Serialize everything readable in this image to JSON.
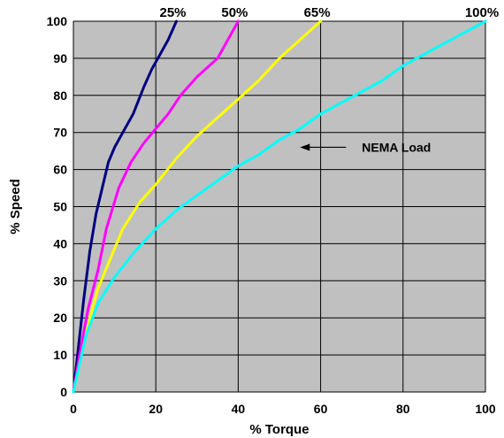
{
  "chart_data": {
    "type": "line",
    "xlabel": "% Torque",
    "ylabel": "% Speed",
    "xlim": [
      0,
      100
    ],
    "ylim": [
      0,
      100
    ],
    "x_ticks": [
      "0",
      "20",
      "40",
      "60",
      "80",
      "100"
    ],
    "y_ticks": [
      "0",
      "10",
      "20",
      "30",
      "40",
      "50",
      "60",
      "70",
      "80",
      "90",
      "100"
    ],
    "grid": true,
    "plot_background": "#c0c0c0",
    "legend": "none",
    "series": [
      {
        "name": "25%",
        "color": "#000080",
        "points": [
          [
            0,
            0
          ],
          [
            1,
            10
          ],
          [
            2.5,
            25
          ],
          [
            4,
            38
          ],
          [
            5.5,
            48
          ],
          [
            7,
            55
          ],
          [
            8.5,
            62
          ],
          [
            10,
            66
          ],
          [
            12,
            70
          ],
          [
            14.5,
            75
          ],
          [
            17,
            82
          ],
          [
            19,
            87
          ],
          [
            21,
            91
          ],
          [
            23,
            95
          ],
          [
            25,
            100
          ]
        ]
      },
      {
        "name": "50%",
        "color": "#ff00ff",
        "points": [
          [
            0,
            0
          ],
          [
            1.5,
            10
          ],
          [
            3.5,
            22
          ],
          [
            6,
            33
          ],
          [
            8,
            44
          ],
          [
            11,
            55
          ],
          [
            14,
            62
          ],
          [
            17,
            67
          ],
          [
            20,
            71
          ],
          [
            23,
            75
          ],
          [
            26,
            80
          ],
          [
            30,
            85
          ],
          [
            35,
            90
          ],
          [
            40,
            100
          ]
        ]
      },
      {
        "name": "65%",
        "color": "#ffff00",
        "points": [
          [
            0,
            0
          ],
          [
            2,
            10
          ],
          [
            4,
            20
          ],
          [
            6,
            28
          ],
          [
            9,
            36
          ],
          [
            12,
            44
          ],
          [
            16,
            51
          ],
          [
            20,
            56
          ],
          [
            25,
            63
          ],
          [
            30,
            69
          ],
          [
            35,
            74
          ],
          [
            40,
            79
          ],
          [
            45,
            84
          ],
          [
            50,
            90
          ],
          [
            55,
            95
          ],
          [
            60,
            100
          ]
        ]
      },
      {
        "name": "100%",
        "color": "#00ffff",
        "points": [
          [
            0,
            0
          ],
          [
            3,
            15
          ],
          [
            6,
            24
          ],
          [
            10,
            31
          ],
          [
            15,
            38
          ],
          [
            20,
            44
          ],
          [
            25,
            49
          ],
          [
            30,
            53
          ],
          [
            35,
            57
          ],
          [
            40,
            61
          ],
          [
            45,
            64
          ],
          [
            50,
            68
          ],
          [
            55,
            71
          ],
          [
            60,
            75
          ],
          [
            65,
            78
          ],
          [
            70,
            81
          ],
          [
            75,
            84
          ],
          [
            80,
            88
          ],
          [
            85,
            91
          ],
          [
            90,
            94
          ],
          [
            95,
            97
          ],
          [
            100,
            100
          ]
        ]
      }
    ],
    "annotations": [
      {
        "text": "NEMA Load",
        "arrow_tip": [
          55,
          66
        ]
      }
    ]
  }
}
